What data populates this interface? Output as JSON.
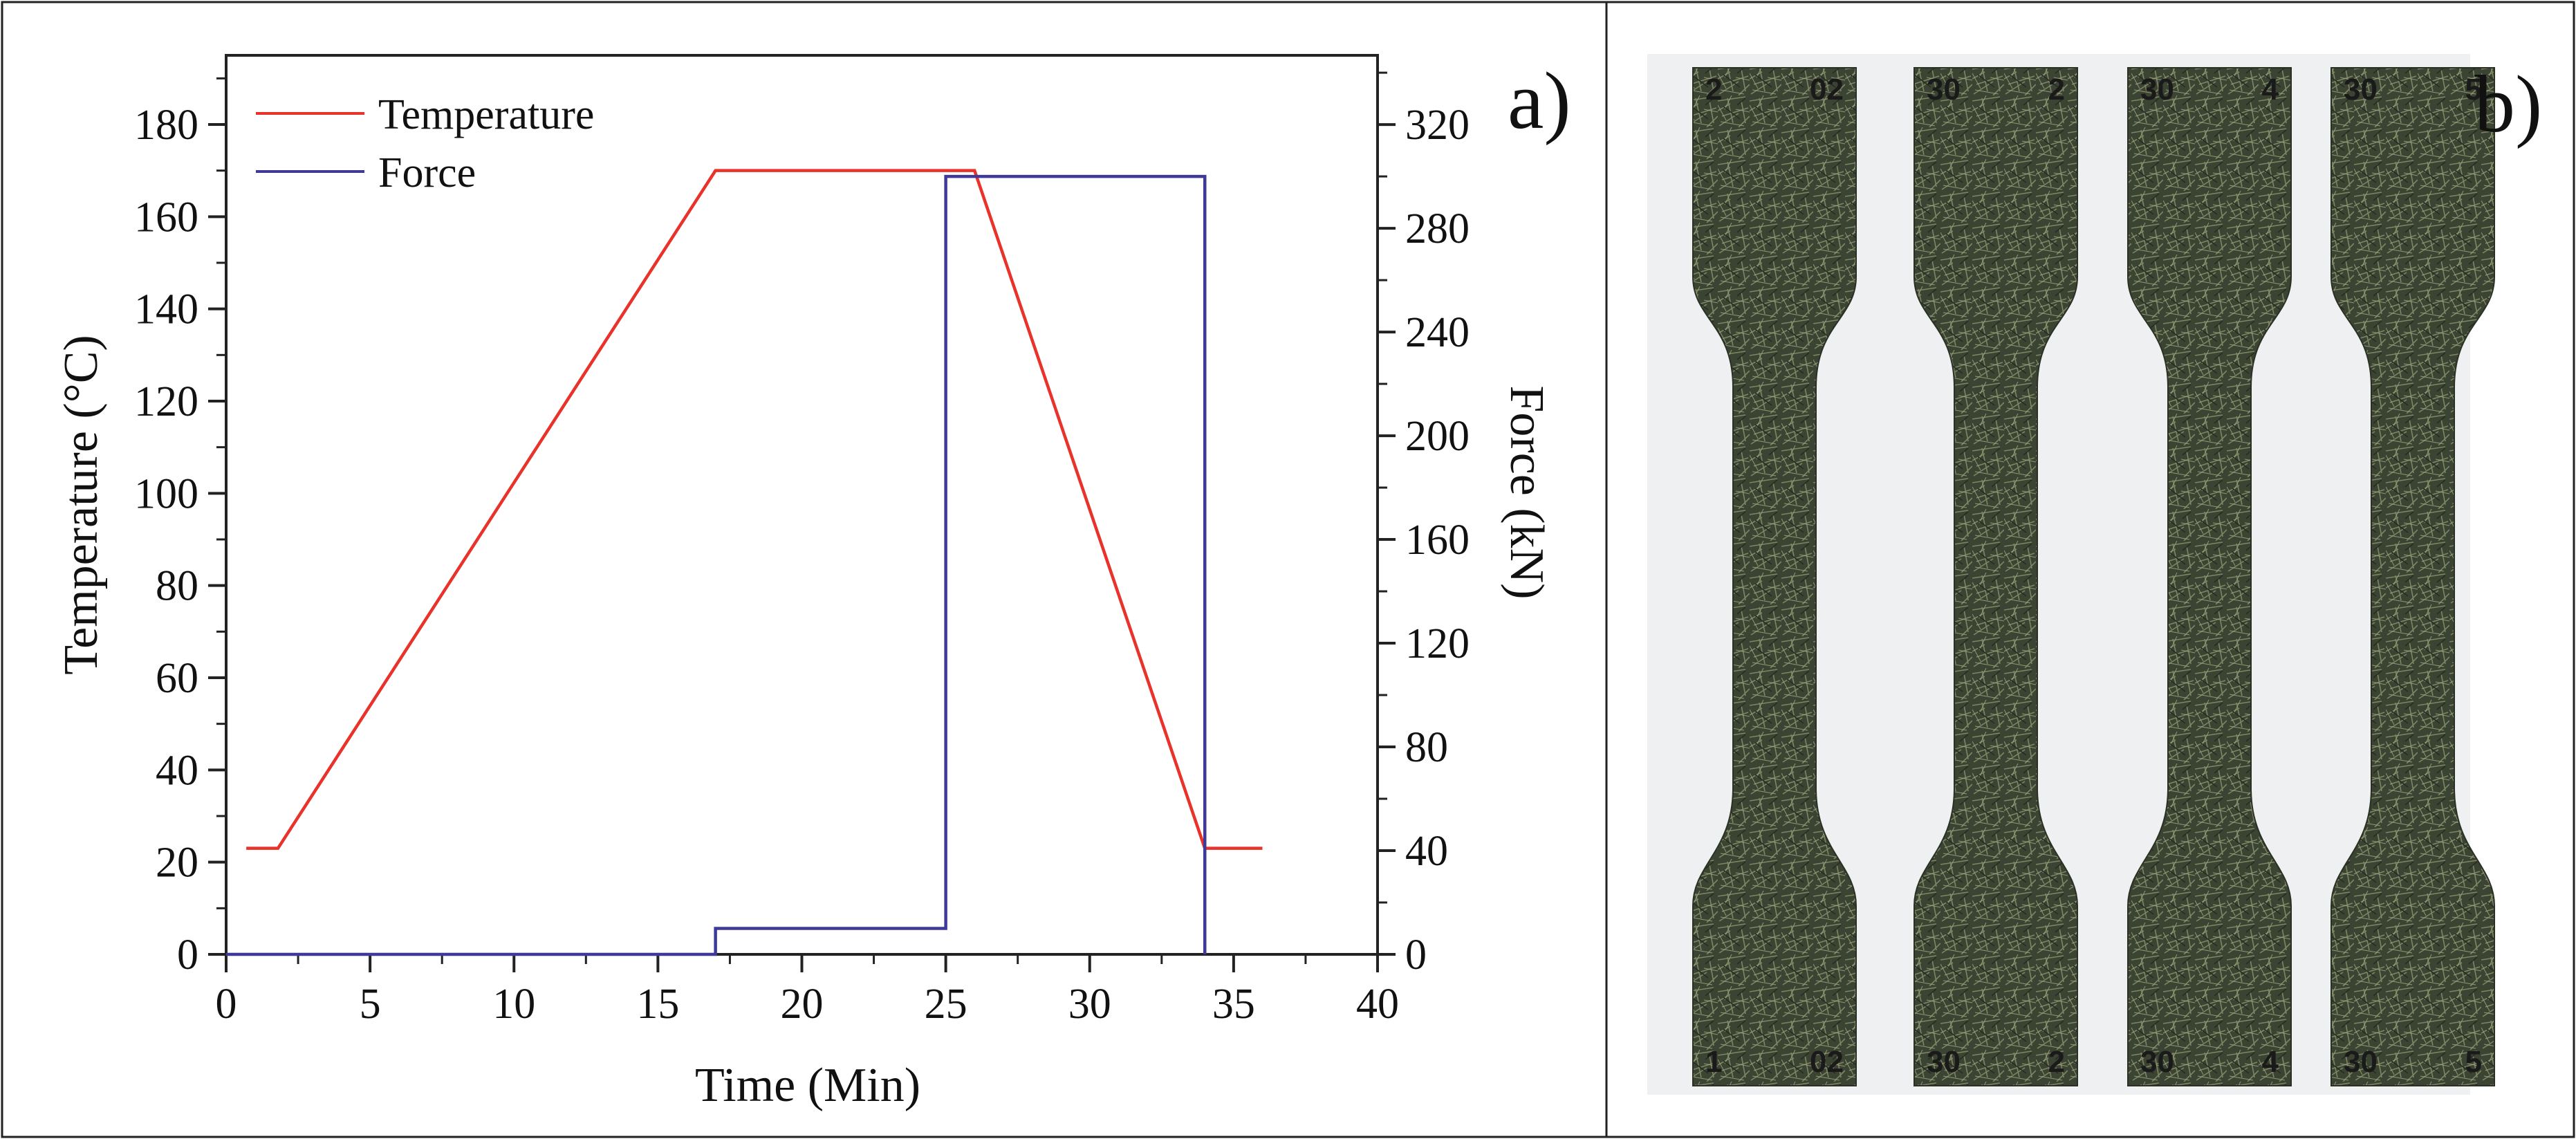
{
  "chart_data": {
    "type": "line",
    "xlabel": "Time (Min)",
    "ylabel": "Temperature (°C)",
    "y2label": "Force (kN)",
    "xlim": [
      0,
      40
    ],
    "ylim": [
      0,
      195
    ],
    "y2lim": [
      0,
      346.7
    ],
    "xticks": [
      0,
      5,
      10,
      15,
      20,
      25,
      30,
      35,
      40
    ],
    "yticks": [
      0,
      20,
      40,
      60,
      80,
      100,
      120,
      140,
      160,
      180
    ],
    "y2ticks": [
      0,
      40,
      80,
      120,
      160,
      200,
      240,
      280,
      320
    ],
    "grid": false,
    "legend_position": "top-left",
    "series": [
      {
        "name": "Temperature",
        "axis": "left",
        "color": "#e8322a",
        "x": [
          0.7,
          1.8,
          17,
          26,
          34,
          36
        ],
        "y": [
          23,
          23,
          170,
          170,
          23,
          23
        ]
      },
      {
        "name": "Force",
        "axis": "right",
        "color": "#3f3a98",
        "x": [
          0,
          17,
          17,
          25,
          25,
          34,
          34
        ],
        "y": [
          0,
          0,
          10,
          10,
          300,
          300,
          0
        ]
      }
    ]
  },
  "panel_a_label": "a)",
  "panel_b_label": "b)",
  "photo": {
    "specimens": [
      {
        "top_left": "2",
        "top_right": "02",
        "bottom_left": "1",
        "bottom_right": "02"
      },
      {
        "top_left": "30",
        "top_right": "2",
        "bottom_left": "30",
        "bottom_right": "2"
      },
      {
        "top_left": "30",
        "top_right": "4",
        "bottom_left": "30",
        "bottom_right": "4"
      },
      {
        "top_left": "30",
        "top_right": "5",
        "bottom_left": "30",
        "bottom_right": "5"
      }
    ]
  }
}
